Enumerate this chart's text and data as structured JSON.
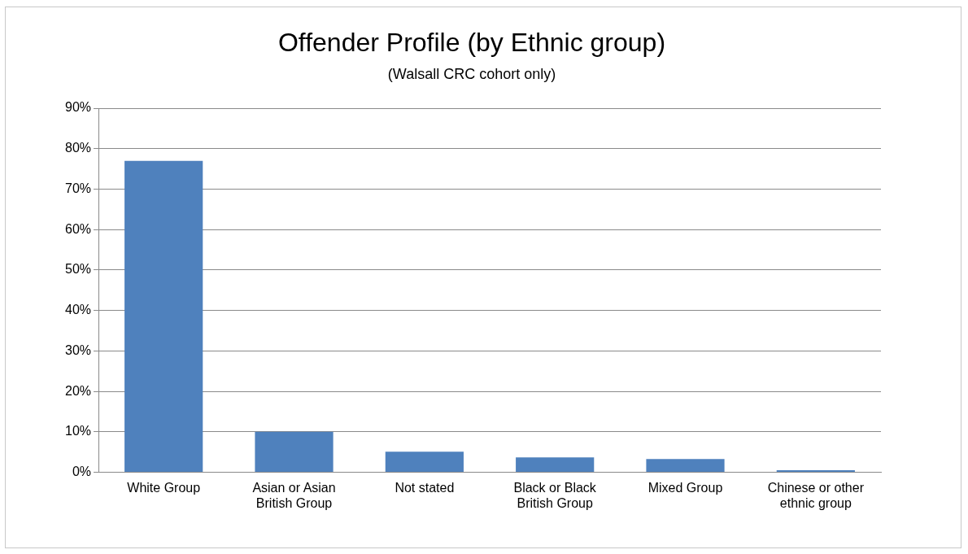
{
  "chart_data": {
    "type": "bar",
    "title": "Offender Profile (by Ethnic group)",
    "subtitle": "(Walsall CRC cohort only)",
    "categories": [
      "White Group",
      "Asian or Asian British Group",
      "Not stated",
      "Black or Black British Group",
      "Mixed Group",
      "Chinese or other ethnic group"
    ],
    "values": [
      77,
      10,
      5.1,
      3.7,
      3.3,
      0.5
    ],
    "color": "#4f81bd",
    "ylim": [
      0,
      90
    ],
    "yticks": [
      {
        "value": 0,
        "label": "0%"
      },
      {
        "value": 10,
        "label": "10%"
      },
      {
        "value": 20,
        "label": "20%"
      },
      {
        "value": 30,
        "label": "30%"
      },
      {
        "value": 40,
        "label": "40%"
      },
      {
        "value": 50,
        "label": "50%"
      },
      {
        "value": 60,
        "label": "60%"
      },
      {
        "value": 70,
        "label": "70%"
      },
      {
        "value": 80,
        "label": "80%"
      },
      {
        "value": 90,
        "label": "90%"
      }
    ],
    "grid": "y",
    "legend": false
  }
}
